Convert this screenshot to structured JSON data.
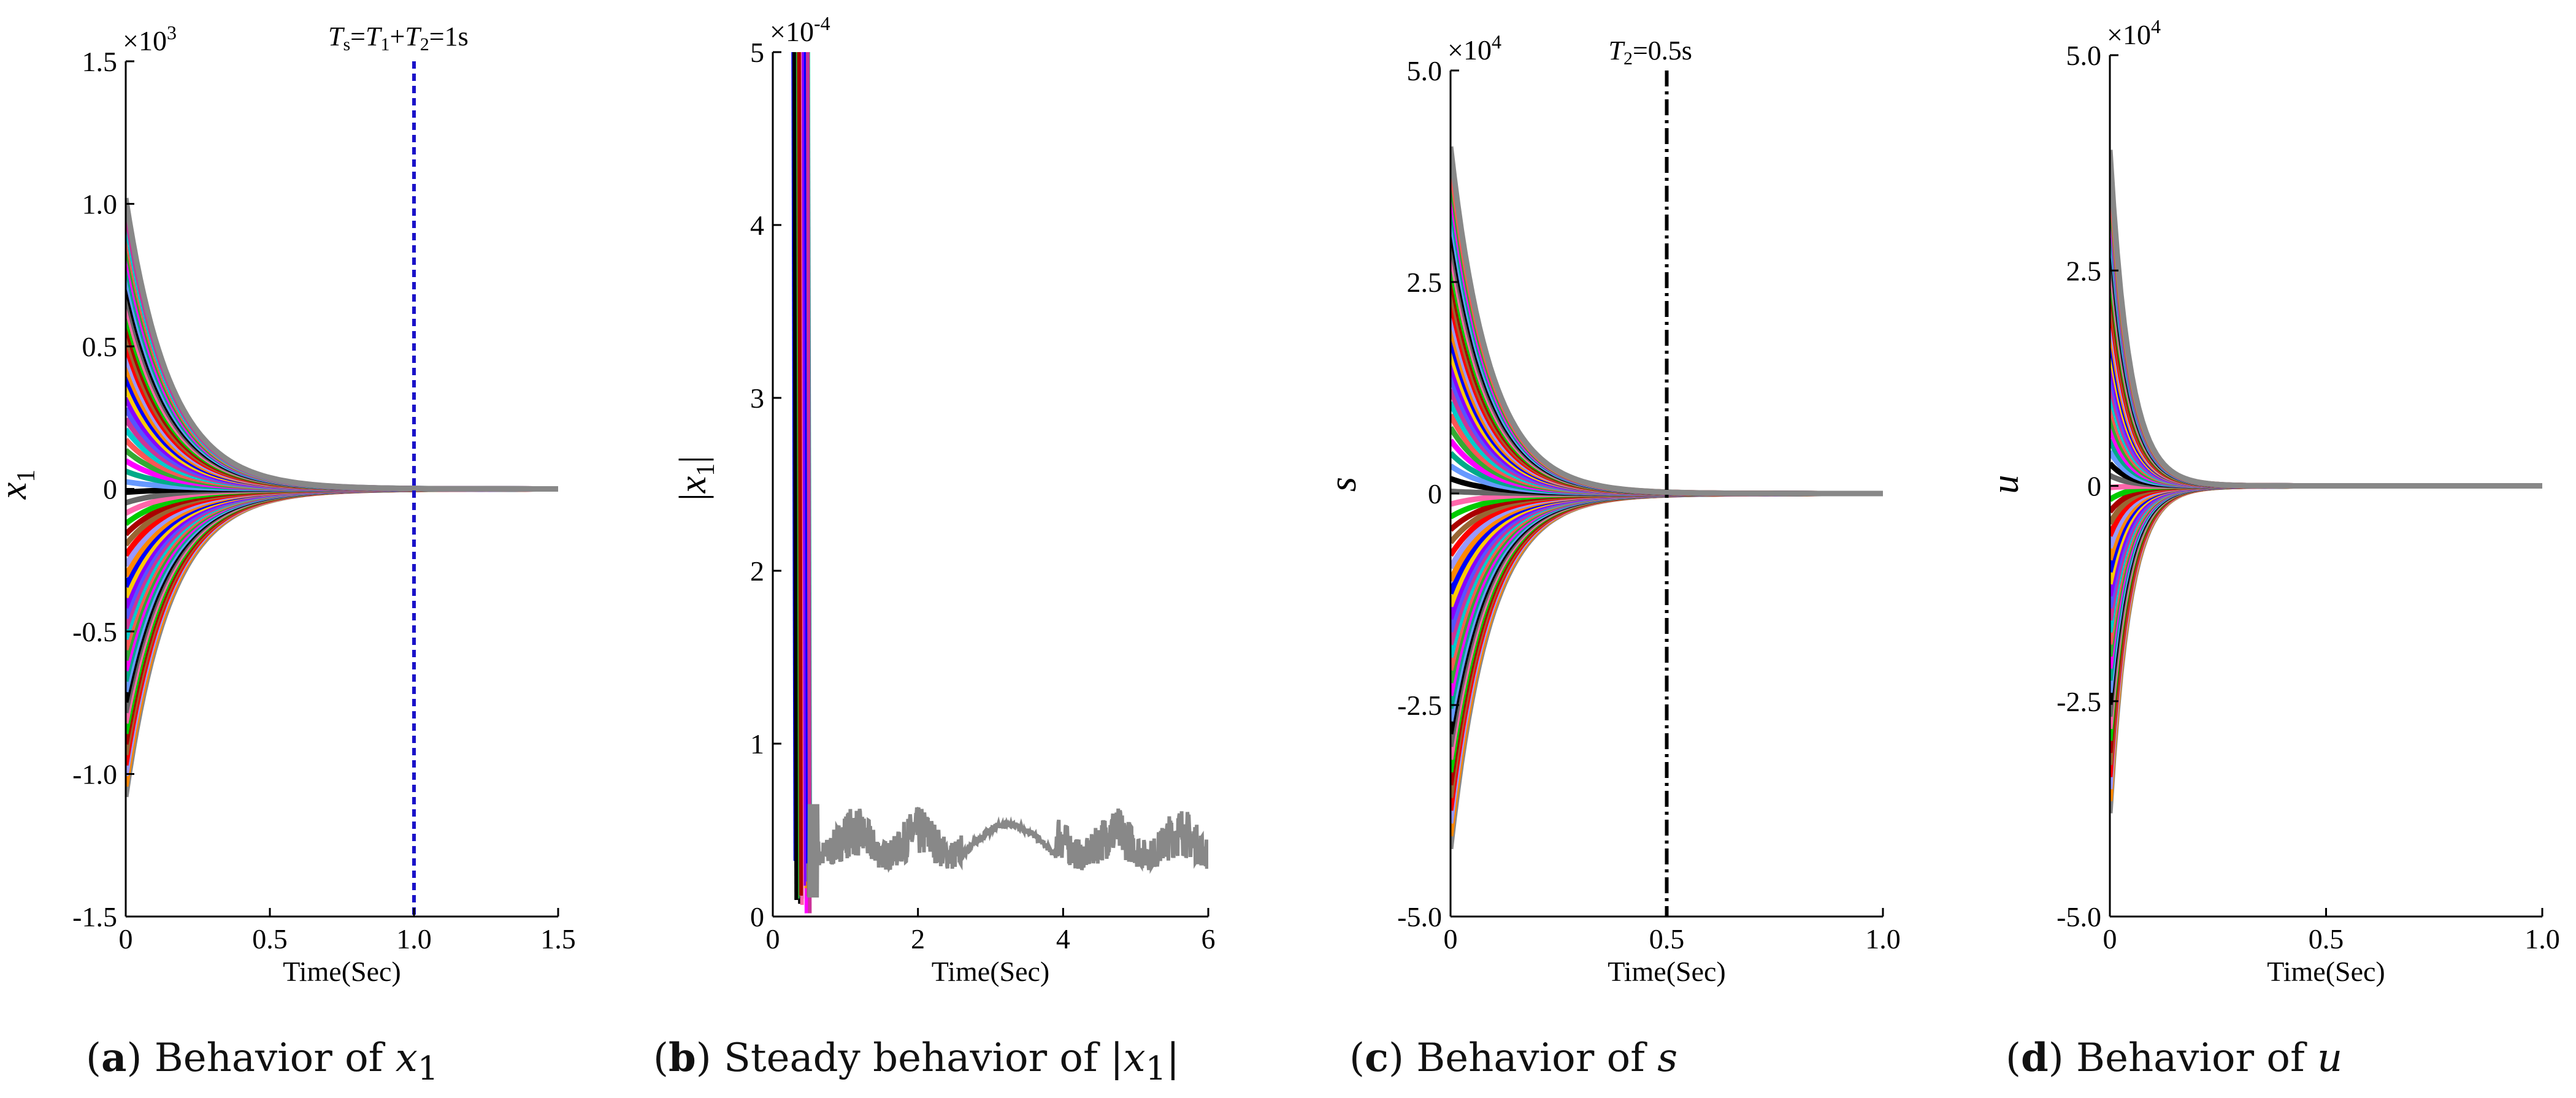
{
  "chart_data": [
    {
      "type": "line",
      "id": "a",
      "caption": {
        "label": "a",
        "text": "Behavior of ",
        "var": "x",
        "sub": "1"
      },
      "ylabel_var": "x",
      "ylabel_sub": "1",
      "xlabel": "Time(Sec)",
      "multiplier": {
        "base": "×10",
        "exp": "3"
      },
      "xlim": [
        0,
        1.5
      ],
      "ylim": [
        -1.5,
        1.5
      ],
      "xticks": [
        0,
        0.5,
        1.0,
        1.5
      ],
      "xtick_labels": [
        "0",
        "0.5",
        "1.0",
        "1.5"
      ],
      "yticks": [
        -1.5,
        -1.0,
        -0.5,
        0,
        0.5,
        1.0,
        1.5
      ],
      "ytick_labels": [
        "-1.5",
        "-1.0",
        "-0.5",
        "0",
        "0.5",
        "1.0",
        "1.5"
      ],
      "vline": {
        "x": 1.0,
        "color": "#1a12c9",
        "style": "dashed"
      },
      "annotation": {
        "T": "T",
        "s": "s",
        "eq1": "=",
        "T1": "T",
        "one": "1",
        "plus": "+",
        "T2": "T",
        "two": "2",
        "eq2": "=1s"
      },
      "curves": {
        "count": 58,
        "amp_min": -1.08,
        "amp_max": 1.02,
        "decay_rate": 6.5,
        "end_color": "#888888"
      }
    },
    {
      "type": "line",
      "id": "b",
      "caption": {
        "label": "b",
        "text": "Steady behavior of |",
        "var": "x",
        "sub": "1",
        "tail": "|"
      },
      "ylabel_var": "x",
      "ylabel_sub": "1",
      "xlabel": "Time(Sec)",
      "multiplier": {
        "base": "×10",
        "exp": "-4"
      },
      "xlim": [
        0,
        6
      ],
      "ylim": [
        0,
        5
      ],
      "xticks": [
        0,
        2,
        4,
        6
      ],
      "xtick_labels": [
        "0",
        "2",
        "4",
        "6"
      ],
      "yticks": [
        0,
        1,
        2,
        3,
        4,
        5
      ],
      "ytick_labels": [
        "0",
        "1",
        "2",
        "3",
        "4",
        "5"
      ],
      "noise_series": {
        "color": "#888888",
        "start": 0.5,
        "end": 6.0,
        "min": 0.15,
        "max": 0.8
      }
    },
    {
      "type": "line",
      "id": "c",
      "caption": {
        "label": "c",
        "text": "Behavior of ",
        "var": "s"
      },
      "ylabel_var": "s",
      "xlabel": "Time(Sec)",
      "multiplier": {
        "base": "×10",
        "exp": "4"
      },
      "xlim": [
        0,
        1.0
      ],
      "ylim": [
        -5.0,
        5.0
      ],
      "xticks": [
        0,
        0.5,
        1.0
      ],
      "xtick_labels": [
        "0",
        "0.5",
        "1.0"
      ],
      "yticks": [
        -5.0,
        -2.5,
        0,
        2.5,
        5.0
      ],
      "ytick_labels": [
        "-5.0",
        "-2.5",
        "0",
        "2.5",
        "5.0"
      ],
      "vline": {
        "x": 0.5,
        "color": "#000000",
        "style": "dashdot"
      },
      "annotation": {
        "T2": "T",
        "two": "2",
        "eq2": "=0.5s"
      },
      "curves": {
        "count": 56,
        "amp_min": -4.2,
        "amp_max": 4.1,
        "decay_rate": 11.0,
        "end_color": "#888888"
      }
    },
    {
      "type": "line",
      "id": "d",
      "caption": {
        "label": "d",
        "text": "Behavior of ",
        "var": "u"
      },
      "ylabel_var": "u",
      "xlabel": "Time(Sec)",
      "multiplier": {
        "base": "×10",
        "exp": "4"
      },
      "xlim": [
        0,
        1.0
      ],
      "ylim": [
        -5.0,
        5.0
      ],
      "xticks": [
        0,
        0.5,
        1.0
      ],
      "xtick_labels": [
        "0",
        "0.5",
        "1.0"
      ],
      "yticks": [
        -5.0,
        -2.5,
        0,
        2.5,
        5.0
      ],
      "ytick_labels": [
        "-5.0",
        "-2.5",
        "0",
        "2.5",
        "5.0"
      ],
      "curves": {
        "count": 56,
        "amp_min": -3.8,
        "amp_max": 3.9,
        "decay_rate": 22.0,
        "end_color": "#888888"
      }
    }
  ],
  "palette": [
    "#0000ff",
    "#ff0000",
    "#00cc00",
    "#000000",
    "#ff00ff",
    "#00cccc",
    "#8800ff",
    "#ff8800",
    "#996633",
    "#ff66aa",
    "#6699ff",
    "#33aa33",
    "#cc3399",
    "#ffcc00",
    "#9999ff",
    "#aa0000",
    "#666666",
    "#00aa88",
    "#ff5555",
    "#5555ff"
  ]
}
